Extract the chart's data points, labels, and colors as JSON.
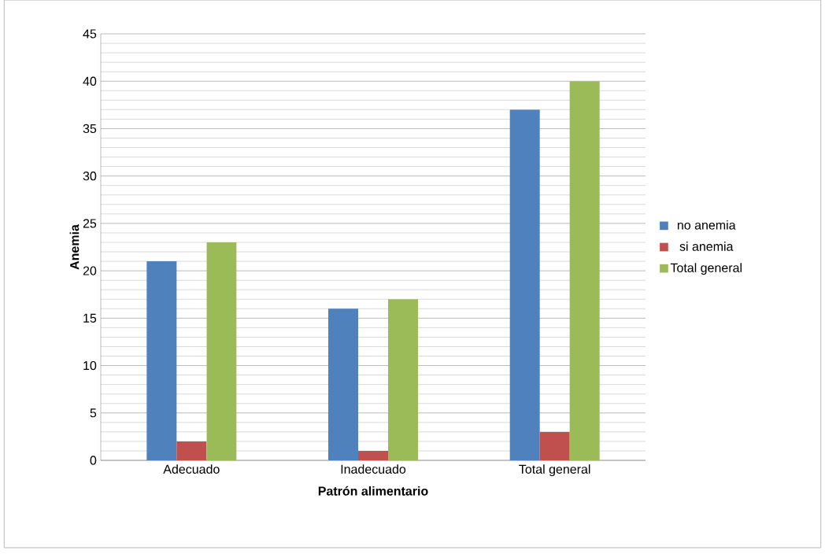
{
  "chart_data": {
    "type": "bar",
    "xlabel": "Patrón alimentario",
    "ylabel": "Anemia",
    "categories": [
      "Adecuado",
      "Inadecuado",
      "Total general"
    ],
    "series": [
      {
        "name": "no anemia",
        "color": "#4f81bd",
        "values": [
          21,
          16,
          37
        ]
      },
      {
        "name": "si anemia",
        "color": "#c0504d",
        "values": [
          2,
          1,
          3
        ]
      },
      {
        "name": "Total general",
        "color": "#9bbb59",
        "values": [
          23,
          17,
          40
        ]
      }
    ],
    "ylim": [
      0,
      45
    ],
    "yticks": [
      0,
      5,
      10,
      15,
      20,
      25,
      30,
      35,
      40,
      45
    ],
    "grid": "y",
    "legend": "right"
  }
}
